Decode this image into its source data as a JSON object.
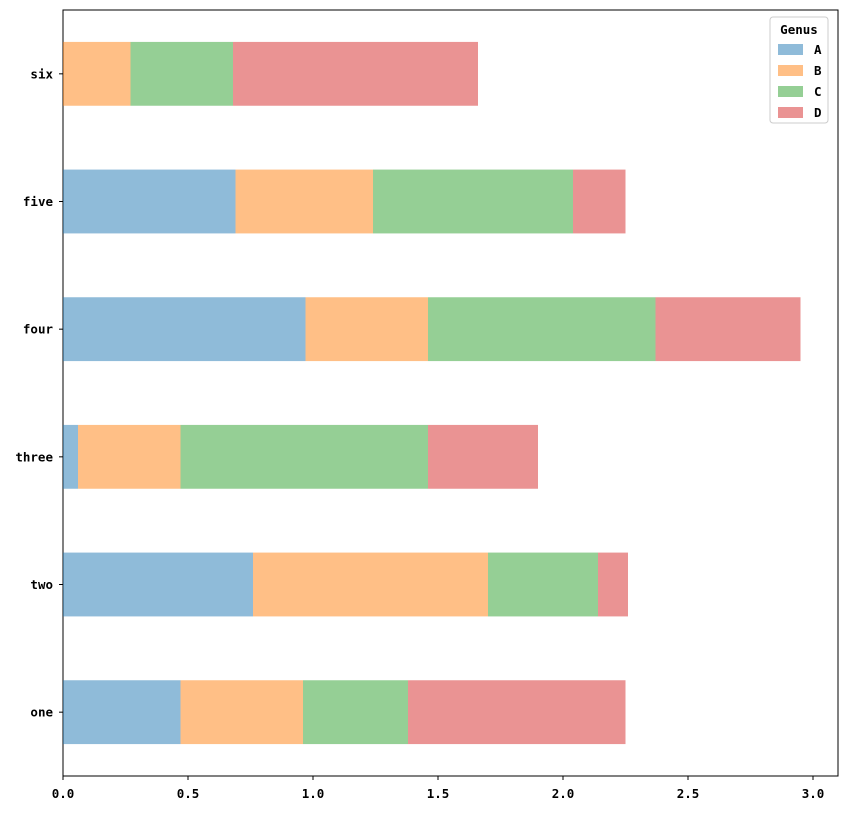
{
  "chart_data": {
    "type": "bar",
    "orientation": "horizontal",
    "stacked": true,
    "categories": [
      "one",
      "two",
      "three",
      "four",
      "five",
      "six"
    ],
    "series": [
      {
        "name": "A",
        "color": "#1f77b4",
        "values": [
          0.47,
          0.76,
          0.06,
          0.97,
          0.69,
          0.0
        ]
      },
      {
        "name": "B",
        "color": "#ff7f0e",
        "values": [
          0.49,
          0.94,
          0.41,
          0.49,
          0.55,
          0.27
        ]
      },
      {
        "name": "C",
        "color": "#2ca02c",
        "values": [
          0.42,
          0.44,
          0.99,
          0.91,
          0.8,
          0.41
        ]
      },
      {
        "name": "D",
        "color": "#d62728",
        "values": [
          0.87,
          0.12,
          0.44,
          0.58,
          0.21,
          0.98
        ]
      }
    ],
    "bar_alpha": 0.5,
    "xlim": [
      0.0,
      3.1
    ],
    "xticks": [
      "0.0",
      "0.5",
      "1.0",
      "1.5",
      "2.0",
      "2.5",
      "3.0"
    ],
    "xlabel": "",
    "ylabel": "",
    "title": "",
    "grid": false,
    "legend": {
      "title": "Genus",
      "placement": "top-right"
    }
  }
}
